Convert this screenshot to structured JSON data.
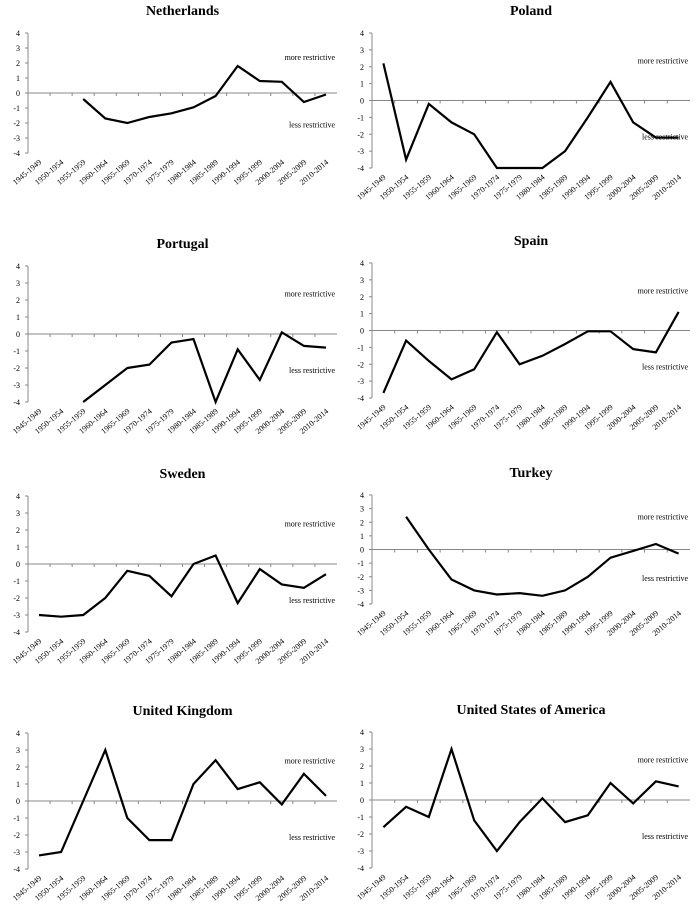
{
  "chart_data": [
    {
      "type": "line",
      "title": "Netherlands",
      "categories": [
        "1945-1949",
        "1950-1954",
        "1955-1959",
        "1960-1964",
        "1965-1969",
        "1970-1974",
        "1975-1979",
        "1980-1984",
        "1985-1989",
        "1990-1994",
        "1995-1999",
        "2000-2004",
        "2005-2009",
        "2010-2014"
      ],
      "values": [
        null,
        null,
        -0.4,
        -1.7,
        -2.0,
        -1.6,
        -1.35,
        -0.95,
        -0.2,
        1.8,
        0.8,
        0.75,
        -0.6,
        -0.1
      ],
      "yticks": [
        4,
        3,
        2,
        1,
        0,
        -1,
        -2,
        -3,
        -4
      ],
      "ylim": [
        -4,
        4
      ],
      "annotations": [
        "more restrictive",
        "less restrictive"
      ]
    },
    {
      "type": "line",
      "title": "Poland",
      "categories": [
        "1945-1949",
        "1950-1954",
        "1955-1959",
        "1960-1964",
        "1965-1969",
        "1970-1974",
        "1975-1979",
        "1980-1984",
        "1985-1989",
        "1990-1994",
        "1995-1999",
        "2000-2004",
        "2005-2009",
        "2010-2014"
      ],
      "values": [
        2.2,
        -3.5,
        -0.2,
        -1.3,
        -2.0,
        -4.0,
        -4.0,
        -4.0,
        -3.0,
        -1.0,
        1.1,
        -1.3,
        -2.2,
        -2.2
      ],
      "yticks": [
        4,
        3,
        2,
        1,
        0,
        -1,
        -2,
        -3,
        -4
      ],
      "ylim": [
        -4,
        4
      ],
      "annotations": [
        "more restrictive",
        "less restrictive"
      ]
    },
    {
      "type": "line",
      "title": "Portugal",
      "categories": [
        "1945-1949",
        "1950-1954",
        "1955-1959",
        "1960-1964",
        "1965-1969",
        "1970-1974",
        "1975-1979",
        "1980-1984",
        "1985-1989",
        "1990-1994",
        "1995-1999",
        "2000-2004",
        "2005-2009",
        "2010-2014"
      ],
      "values": [
        null,
        null,
        -4.0,
        -3.0,
        -2.0,
        -1.8,
        -0.5,
        -0.3,
        -4.0,
        -0.9,
        -2.7,
        0.1,
        -0.7,
        -0.8
      ],
      "yticks": [
        4,
        3,
        2,
        1,
        0,
        -1,
        -2,
        -3,
        -4
      ],
      "ylim": [
        -4,
        4
      ],
      "annotations": [
        "more restrictive",
        "less restrictive"
      ]
    },
    {
      "type": "line",
      "title": "Spain",
      "categories": [
        "1945-1949",
        "1950-1954",
        "1955-1959",
        "1960-1964",
        "1965-1969",
        "1970-1974",
        "1975-1979",
        "1980-1984",
        "1985-1989",
        "1990-1994",
        "1995-1999",
        "2000-2004",
        "2005-2009",
        "2010-2014"
      ],
      "values": [
        -3.7,
        -0.6,
        -1.8,
        -2.9,
        -2.3,
        -0.1,
        -2.0,
        -1.5,
        -0.8,
        -0.05,
        -0.05,
        -1.1,
        -1.3,
        1.1
      ],
      "yticks": [
        4,
        3,
        2,
        1,
        0,
        -1,
        -2,
        -3,
        -4
      ],
      "ylim": [
        -4,
        4
      ],
      "annotations": [
        "more restrictive",
        "less restrictive"
      ]
    },
    {
      "type": "line",
      "title": "Sweden",
      "categories": [
        "1945-1949",
        "1950-1954",
        "1955-1959",
        "1960-1964",
        "1965-1969",
        "1970-1974",
        "1975-1979",
        "1980-1984",
        "1985-1989",
        "1990-1994",
        "1995-1999",
        "2000-2004",
        "2005-2009",
        "2010-2014"
      ],
      "values": [
        -3.0,
        -3.1,
        -3.0,
        -2.0,
        -0.4,
        -0.7,
        -1.9,
        0.0,
        0.5,
        -2.3,
        -0.3,
        -1.2,
        -1.4,
        -0.6
      ],
      "yticks": [
        4,
        3,
        2,
        1,
        0,
        -1,
        -2,
        -3,
        -4
      ],
      "ylim": [
        -4,
        4
      ],
      "annotations": [
        "more restrictive",
        "less restrictive"
      ]
    },
    {
      "type": "line",
      "title": "Turkey",
      "categories": [
        "1945-1949",
        "1950-1954",
        "1955-1959",
        "1960-1964",
        "1965-1969",
        "1970-1974",
        "1975-1979",
        "1980-1984",
        "1985-1989",
        "1990-1994",
        "1995-1999",
        "2000-2004",
        "2005-2009",
        "2010-2014"
      ],
      "values": [
        null,
        2.4,
        0.0,
        -2.2,
        -3.0,
        -3.3,
        -3.2,
        -3.4,
        -3.0,
        -2.0,
        -0.6,
        -0.1,
        0.4,
        -0.3
      ],
      "yticks": [
        4,
        3,
        2,
        1,
        0,
        -1,
        -2,
        -3,
        -4
      ],
      "ylim": [
        -4,
        4
      ],
      "annotations": [
        "more restrictive",
        "less restrictive"
      ]
    },
    {
      "type": "line",
      "title": "United Kingdom",
      "categories": [
        "1945-1949",
        "1950-1954",
        "1955-1959",
        "1960-1964",
        "1965-1969",
        "1970-1974",
        "1975-1979",
        "1980-1984",
        "1985-1989",
        "1990-1994",
        "1995-1999",
        "2000-2004",
        "2005-2009",
        "2010-2014"
      ],
      "values": [
        -3.2,
        -3.0,
        0.0,
        3.0,
        -1.0,
        -2.3,
        -2.3,
        1.0,
        2.4,
        0.7,
        1.1,
        -0.2,
        1.6,
        0.3
      ],
      "yticks": [
        4,
        3,
        2,
        1,
        0,
        -1,
        -2,
        -3,
        -4
      ],
      "ylim": [
        -4,
        4
      ],
      "annotations": [
        "more restrictive",
        "less restrictive"
      ]
    },
    {
      "type": "line",
      "title": "United States of America",
      "categories": [
        "1945-1949",
        "1950-1954",
        "1955-1959",
        "1960-1964",
        "1965-1969",
        "1970-1974",
        "1975-1979",
        "1980-1984",
        "1985-1989",
        "1990-1994",
        "1995-1999",
        "2000-2004",
        "2005-2009",
        "2010-2014"
      ],
      "values": [
        -1.6,
        -0.4,
        -1.0,
        3.0,
        -1.2,
        -3.0,
        -1.3,
        0.1,
        -1.3,
        -0.9,
        1.0,
        -0.2,
        1.1,
        0.8
      ],
      "yticks": [
        4,
        3,
        2,
        1,
        0,
        -1,
        -2,
        -3,
        -4
      ],
      "ylim": [
        -4,
        4
      ],
      "annotations": [
        "more restrictive",
        "less restrictive"
      ]
    }
  ]
}
